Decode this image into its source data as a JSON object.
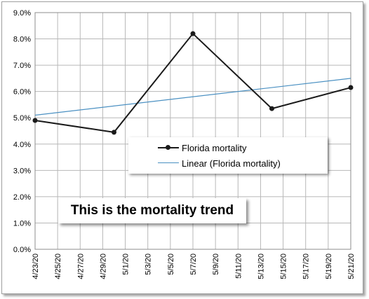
{
  "chart_data": {
    "type": "line",
    "x": [
      "4/23/20",
      "4/24/20",
      "4/25/20",
      "4/26/20",
      "4/27/20",
      "4/28/20",
      "4/29/20",
      "4/30/20",
      "5/1/20",
      "5/2/20",
      "5/3/20",
      "5/4/20",
      "5/5/20",
      "5/6/20",
      "5/7/20",
      "5/8/20",
      "5/9/20",
      "5/10/20",
      "5/11/20",
      "5/12/20",
      "5/13/20",
      "5/14/20",
      "5/15/20",
      "5/16/20",
      "5/17/20",
      "5/18/20",
      "5/19/20",
      "5/20/20",
      "5/21/20"
    ],
    "x_tick_labels": [
      "4/23/20",
      "4/25/20",
      "4/27/20",
      "4/29/20",
      "5/1/20",
      "5/3/20",
      "5/5/20",
      "5/7/20",
      "5/9/20",
      "5/11/20",
      "5/13/20",
      "5/15/20",
      "5/17/20",
      "5/19/20",
      "5/21/20"
    ],
    "series": [
      {
        "name": "Florida mortality",
        "color": "#1a1a1a",
        "marker": "circle",
        "points": [
          {
            "x": "4/23/20",
            "y": 4.9
          },
          {
            "x": "4/30/20",
            "y": 4.45
          },
          {
            "x": "5/7/20",
            "y": 8.2
          },
          {
            "x": "5/14/20",
            "y": 5.35
          },
          {
            "x": "5/21/20",
            "y": 6.15
          }
        ]
      },
      {
        "name": "Linear (Florida mortality)",
        "color": "#4a90c2",
        "trendline": true,
        "points": [
          {
            "x": "4/23/20",
            "y": 5.1
          },
          {
            "x": "5/21/20",
            "y": 6.5
          }
        ]
      }
    ],
    "y_tick_labels": [
      "0.0%",
      "1.0%",
      "2.0%",
      "3.0%",
      "4.0%",
      "5.0%",
      "6.0%",
      "7.0%",
      "8.0%",
      "9.0%"
    ],
    "ylim": [
      0,
      9
    ],
    "y_unit": "%",
    "grid": true,
    "legend_position": "center-right"
  },
  "annotation": {
    "text": "This is the mortality trend"
  }
}
